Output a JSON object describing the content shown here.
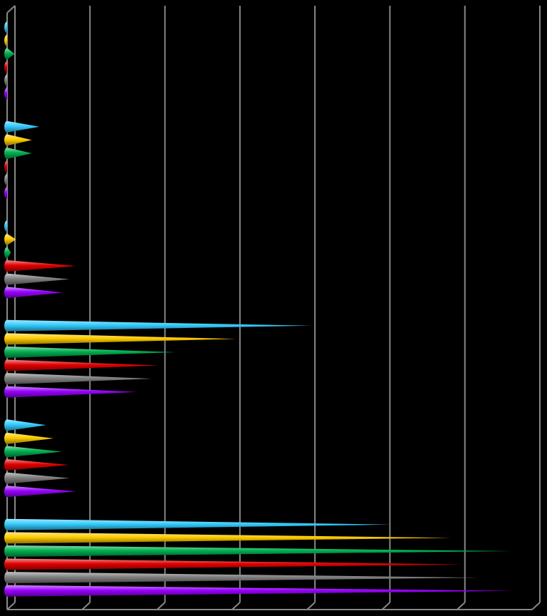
{
  "chart_data": {
    "type": "cone_bar_horizontal",
    "categories": [
      null,
      null,
      null,
      null,
      null,
      null
    ],
    "series": [
      {
        "color": "#33ccff",
        "values": [
          0,
          0.43,
          0,
          4.05,
          0.52,
          5.12
        ]
      },
      {
        "color": "#ffcc00",
        "values": [
          0,
          0.33,
          0.12,
          3.05,
          0.62,
          5.92
        ]
      },
      {
        "color": "#00b050",
        "values": [
          0.1,
          0.33,
          0.05,
          2.24,
          0.73,
          6.72
        ]
      },
      {
        "color": "#e00000",
        "values": [
          0,
          0,
          0.92,
          2.02,
          0.82,
          6.08
        ]
      },
      {
        "color": "#808080",
        "values": [
          0,
          0,
          0.83,
          1.93,
          0.83,
          6.3
        ]
      },
      {
        "color": "#9900ff",
        "values": [
          0,
          0,
          0.74,
          1.73,
          0.92,
          6.74
        ]
      }
    ],
    "xlim": [
      0,
      7
    ],
    "xticks": [
      0,
      1,
      2,
      3,
      4,
      5,
      6,
      7
    ],
    "grid": true
  }
}
